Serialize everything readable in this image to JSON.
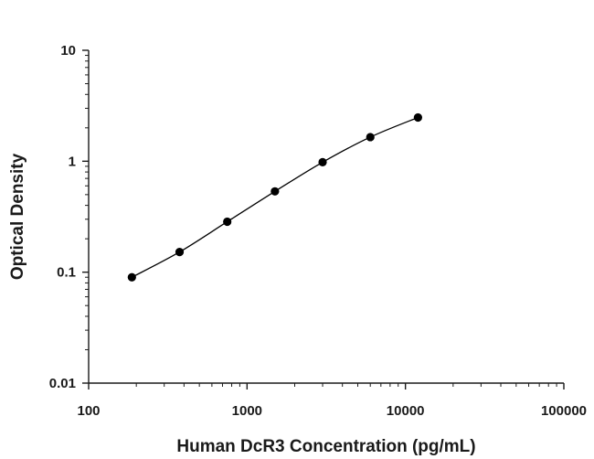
{
  "chart_data": {
    "type": "scatter",
    "title": "",
    "xlabel": "Human DcR3 Concentration (pg/mL)",
    "ylabel": "Optical Density",
    "xscale": "log",
    "yscale": "log",
    "xlim": [
      100,
      100000
    ],
    "ylim": [
      0.01,
      10
    ],
    "xticks": [
      "100",
      "1000",
      "10000",
      "100000"
    ],
    "yticks": [
      "0.01",
      "0.1",
      "1",
      "10"
    ],
    "grid": false,
    "legend": "none",
    "fit_line": true,
    "colors": {
      "axis": "#1a1a1a",
      "points": "#000000",
      "line": "#000000"
    },
    "series": [
      {
        "x": [
          187.5,
          375,
          750,
          1500,
          3000,
          6000,
          12000
        ],
        "y": [
          0.09,
          0.152,
          0.285,
          0.535,
          0.98,
          1.65,
          2.48
        ]
      }
    ]
  }
}
